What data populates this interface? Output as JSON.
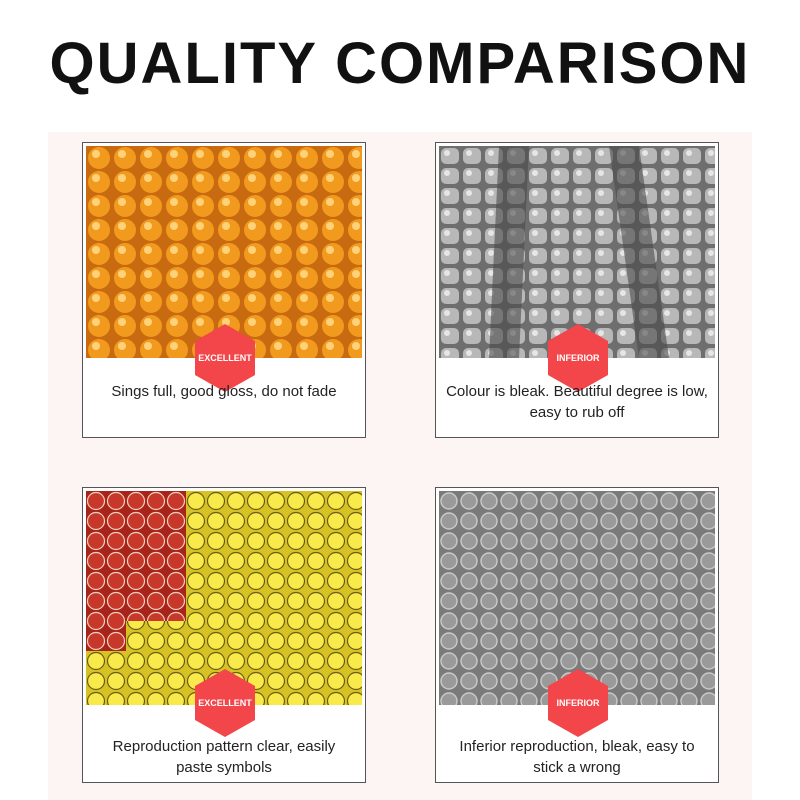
{
  "header": {
    "title": "QUALITY COMPARISON"
  },
  "cards": [
    {
      "badge": "EXCELLENT",
      "caption": "Sings full, good gloss, do not fade"
    },
    {
      "badge": "INFERIOR",
      "caption": "Colour is bleak. Beautiful degree is low, easy to rub off"
    },
    {
      "badge": "EXCELLENT",
      "caption": "Reproduction pattern clear, easily paste symbols"
    },
    {
      "badge": "INFERIOR",
      "caption": "Inferior reproduction, bleak, easy to stick a wrong"
    }
  ]
}
